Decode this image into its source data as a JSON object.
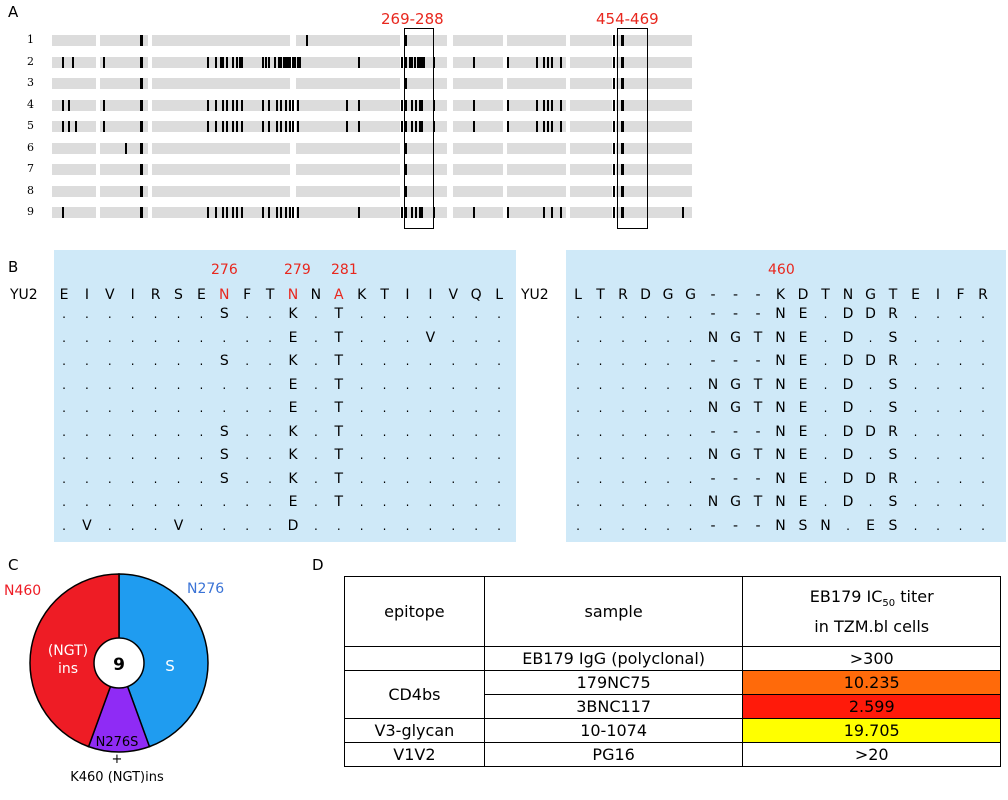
{
  "panels": {
    "a": "A",
    "b": "B",
    "c": "C",
    "d": "D"
  },
  "panel_a": {
    "rows": [
      {
        "label": "1",
        "ticks": [
          140,
          306,
          404,
          613,
          621
        ]
      },
      {
        "label": "2",
        "ticks": [
          62,
          72,
          103,
          140,
          207,
          215,
          220,
          222,
          226,
          232,
          236,
          239,
          241,
          262,
          265,
          268,
          274,
          278,
          280,
          283,
          285,
          287,
          289,
          292,
          294,
          297,
          299,
          358,
          401,
          404,
          409,
          411,
          414,
          417,
          419,
          421,
          423,
          433,
          473,
          507,
          536,
          543,
          547,
          551,
          560,
          613,
          621
        ]
      },
      {
        "label": "3",
        "ticks": [
          140,
          404,
          613,
          621
        ]
      },
      {
        "label": "4",
        "ticks": [
          62,
          68,
          103,
          140,
          207,
          215,
          222,
          226,
          232,
          236,
          241,
          262,
          268,
          276,
          280,
          285,
          289,
          292,
          297,
          346,
          358,
          401,
          404,
          411,
          415,
          419,
          421,
          433,
          473,
          507,
          536,
          543,
          547,
          551,
          560,
          613,
          621
        ]
      },
      {
        "label": "5",
        "ticks": [
          62,
          68,
          75,
          103,
          140,
          207,
          215,
          222,
          226,
          232,
          236,
          241,
          262,
          268,
          276,
          280,
          285,
          289,
          292,
          297,
          346,
          358,
          401,
          404,
          411,
          415,
          419,
          421,
          433,
          473,
          507,
          536,
          543,
          547,
          551,
          560,
          613,
          621
        ]
      },
      {
        "label": "6",
        "ticks": [
          125,
          140,
          404,
          613,
          621
        ]
      },
      {
        "label": "7",
        "ticks": [
          140,
          404,
          613,
          621
        ]
      },
      {
        "label": "8",
        "ticks": [
          140,
          404,
          613,
          621
        ]
      },
      {
        "label": "9",
        "ticks": [
          62,
          140,
          207,
          215,
          222,
          226,
          232,
          236,
          241,
          262,
          268,
          276,
          280,
          285,
          289,
          292,
          297,
          358,
          401,
          404,
          411,
          415,
          419,
          421,
          433,
          473,
          507,
          543,
          551,
          560,
          613,
          621,
          682
        ]
      }
    ],
    "regions": [
      {
        "label": "269-288"
      },
      {
        "label": "454-469"
      }
    ]
  },
  "panel_b": {
    "left": {
      "ref_label": "YU2",
      "positions": [
        "276",
        "279",
        "281"
      ],
      "reference": [
        "E",
        "I",
        "V",
        "I",
        "R",
        "S",
        "E",
        "N",
        "F",
        "T",
        "N",
        "N",
        "A",
        "K",
        "T",
        "I",
        "I",
        "V",
        "Q",
        "L"
      ],
      "highlight_cols": [
        7,
        10,
        12
      ],
      "rows": [
        [
          ".",
          ".",
          ".",
          ".",
          ".",
          ".",
          ".",
          "S",
          ".",
          ".",
          "K",
          ".",
          "T",
          ".",
          ".",
          ".",
          ".",
          ".",
          ".",
          "."
        ],
        [
          ".",
          ".",
          ".",
          ".",
          ".",
          ".",
          ".",
          ".",
          ".",
          ".",
          "E",
          ".",
          "T",
          ".",
          ".",
          ".",
          "V",
          ".",
          ".",
          "."
        ],
        [
          ".",
          ".",
          ".",
          ".",
          ".",
          ".",
          ".",
          "S",
          ".",
          ".",
          "K",
          ".",
          "T",
          ".",
          ".",
          ".",
          ".",
          ".",
          ".",
          "."
        ],
        [
          ".",
          ".",
          ".",
          ".",
          ".",
          ".",
          ".",
          ".",
          ".",
          ".",
          "E",
          ".",
          "T",
          ".",
          ".",
          ".",
          ".",
          ".",
          ".",
          "."
        ],
        [
          ".",
          ".",
          ".",
          ".",
          ".",
          ".",
          ".",
          ".",
          ".",
          ".",
          "E",
          ".",
          "T",
          ".",
          ".",
          ".",
          ".",
          ".",
          ".",
          "."
        ],
        [
          ".",
          ".",
          ".",
          ".",
          ".",
          ".",
          ".",
          "S",
          ".",
          ".",
          "K",
          ".",
          "T",
          ".",
          ".",
          ".",
          ".",
          ".",
          ".",
          "."
        ],
        [
          ".",
          ".",
          ".",
          ".",
          ".",
          ".",
          ".",
          "S",
          ".",
          ".",
          "K",
          ".",
          "T",
          ".",
          ".",
          ".",
          ".",
          ".",
          ".",
          "."
        ],
        [
          ".",
          ".",
          ".",
          ".",
          ".",
          ".",
          ".",
          "S",
          ".",
          ".",
          "K",
          ".",
          "T",
          ".",
          ".",
          ".",
          ".",
          ".",
          ".",
          "."
        ],
        [
          ".",
          ".",
          ".",
          ".",
          ".",
          ".",
          ".",
          ".",
          ".",
          ".",
          "E",
          ".",
          "T",
          ".",
          ".",
          ".",
          ".",
          ".",
          ".",
          "."
        ],
        [
          ".",
          "V",
          ".",
          ".",
          ".",
          "V",
          ".",
          ".",
          ".",
          ".",
          "D",
          ".",
          ".",
          ".",
          ".",
          ".",
          ".",
          ".",
          ".",
          "."
        ]
      ]
    },
    "right": {
      "ref_label": "YU2",
      "positions": [
        "460"
      ],
      "reference": [
        "L",
        "T",
        "R",
        "D",
        "G",
        "G",
        "-",
        "-",
        "-",
        "K",
        "D",
        "T",
        "N",
        "G",
        "T",
        "E",
        "I",
        "F",
        "R"
      ],
      "highlight_cols": [
        9
      ],
      "rows": [
        [
          ".",
          ".",
          ".",
          ".",
          ".",
          ".",
          "-",
          "-",
          "-",
          "N",
          "E",
          ".",
          "D",
          "D",
          "R",
          ".",
          ".",
          ".",
          "."
        ],
        [
          ".",
          ".",
          ".",
          ".",
          ".",
          ".",
          "N",
          "G",
          "T",
          "N",
          "E",
          ".",
          "D",
          ".",
          "S",
          ".",
          ".",
          ".",
          "."
        ],
        [
          ".",
          ".",
          ".",
          ".",
          ".",
          ".",
          "-",
          "-",
          "-",
          "N",
          "E",
          ".",
          "D",
          "D",
          "R",
          ".",
          ".",
          ".",
          "."
        ],
        [
          ".",
          ".",
          ".",
          ".",
          ".",
          ".",
          "N",
          "G",
          "T",
          "N",
          "E",
          ".",
          "D",
          ".",
          "S",
          ".",
          ".",
          ".",
          "."
        ],
        [
          ".",
          ".",
          ".",
          ".",
          ".",
          ".",
          "N",
          "G",
          "T",
          "N",
          "E",
          ".",
          "D",
          ".",
          "S",
          ".",
          ".",
          ".",
          "."
        ],
        [
          ".",
          ".",
          ".",
          ".",
          ".",
          ".",
          "-",
          "-",
          "-",
          "N",
          "E",
          ".",
          "D",
          "D",
          "R",
          ".",
          ".",
          ".",
          "."
        ],
        [
          ".",
          ".",
          ".",
          ".",
          ".",
          ".",
          "N",
          "G",
          "T",
          "N",
          "E",
          ".",
          "D",
          ".",
          "S",
          ".",
          ".",
          ".",
          "."
        ],
        [
          ".",
          ".",
          ".",
          ".",
          ".",
          ".",
          "-",
          "-",
          "-",
          "N",
          "E",
          ".",
          "D",
          "D",
          "R",
          ".",
          ".",
          ".",
          "."
        ],
        [
          ".",
          ".",
          ".",
          ".",
          ".",
          ".",
          "N",
          "G",
          "T",
          "N",
          "E",
          ".",
          "D",
          ".",
          "S",
          ".",
          ".",
          ".",
          "."
        ],
        [
          ".",
          ".",
          ".",
          ".",
          ".",
          ".",
          "-",
          "-",
          "-",
          "N",
          "S",
          "N",
          ".",
          "E",
          "S",
          ".",
          ".",
          ".",
          "."
        ]
      ]
    }
  },
  "panel_c": {
    "center_label": "9",
    "labels": {
      "n460": "N460",
      "n276": "N276",
      "ngt_ins": "(NGT)\nins",
      "s": "S",
      "combo_line1": "N276S",
      "combo_line2": "+",
      "combo_line3": "K460 (NGT)ins"
    },
    "colors": {
      "red": "#ee1c25",
      "blue": "#1f9cf0",
      "purple": "#8f2bf5",
      "n460": "#ee1c25",
      "n276": "#3a73d6"
    },
    "slices": [
      {
        "name": "N276 S",
        "count": 4,
        "color": "#1f9cf0"
      },
      {
        "name": "N276S + K460 (NGT)ins",
        "count": 1,
        "color": "#8f2bf5"
      },
      {
        "name": "N460 (NGT)ins",
        "count": 4,
        "color": "#ee1c25"
      }
    ]
  },
  "panel_d": {
    "headers": {
      "epitope": "epitope",
      "sample": "sample",
      "titer_line1": "EB179 IC",
      "titer_sub": "50",
      "titer_line1b": " titer",
      "titer_line2": "in TZM.bl cells"
    },
    "rows": [
      {
        "epitope": "",
        "sample": "EB179 IgG (polyclonal)",
        "value": ">300",
        "color": "#ffffff"
      },
      {
        "epitope": "CD4bs",
        "sample": "179NC75",
        "value": "10.235",
        "color": "#ff6a0a"
      },
      {
        "epitope": "",
        "sample": "3BNC117",
        "value": "2.599",
        "color": "#ff1a0a"
      },
      {
        "epitope": "V3-glycan",
        "sample": "10-1074",
        "value": "19.705",
        "color": "#ffff00"
      },
      {
        "epitope": "V1V2",
        "sample": "PG16",
        "value": ">20",
        "color": "#ffffff"
      }
    ]
  }
}
